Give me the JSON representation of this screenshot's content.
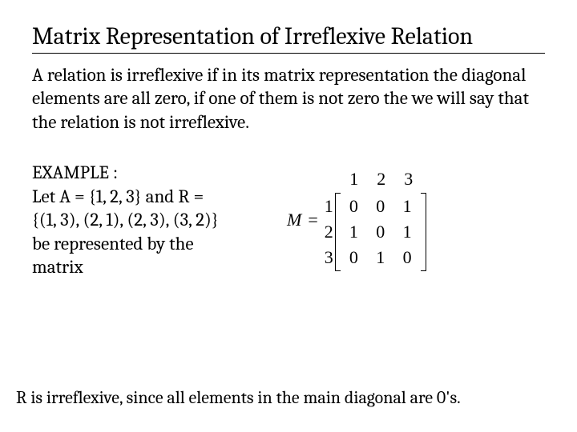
{
  "title": "Matrix Representation of Irreflexive Relation",
  "body": "A relation is irreflexive if in its matrix representation the diagonal elements are all zero, if one of them is not zero the we will say that the relation is not irreflexive.",
  "example": {
    "heading": "EXAMPLE :",
    "line1": "Let A = {1, 2, 3} and R =",
    "line2": "{(1, 3), (2, 1), (2, 3), (3, 2)}",
    "line3": "be represented by the",
    "line4": "matrix"
  },
  "matrix": {
    "symbol": "M",
    "equals": "=",
    "col_labels": [
      "1",
      "2",
      "3"
    ],
    "row_labels": [
      "1",
      "2",
      "3"
    ],
    "rows": [
      [
        "0",
        "0",
        "1"
      ],
      [
        "1",
        "0",
        "1"
      ],
      [
        "0",
        "1",
        "0"
      ]
    ],
    "line_color": "#000000",
    "font_family": "Times New Roman",
    "cell_fontsize": 22
  },
  "conclusion": "R is irreflexive, since all elements in the main diagonal are 0's.",
  "colors": {
    "background": "#ffffff",
    "text": "#000000"
  }
}
